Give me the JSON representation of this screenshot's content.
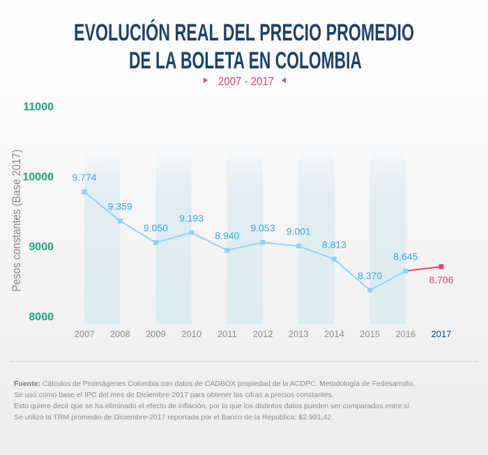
{
  "chart_data": {
    "type": "line",
    "title": "EVOLUCIÓN REAL DEL PRECIO PROMEDIO DE LA BOLETA EN COLOMBIA",
    "title_lines": [
      "EVOLUCIÓN REAL DEL PRECIO PROMEDIO",
      "DE LA BOLETA EN COLOMBIA"
    ],
    "subtitle": "2007 - 2017",
    "ylabel": "Pesos constantes (Base 2017)",
    "xlabel": "",
    "ylim": [
      8000,
      11000
    ],
    "yticks": [
      "8000",
      "9000",
      "10000",
      "11000"
    ],
    "categories": [
      "2007",
      "2008",
      "2009",
      "2010",
      "2011",
      "2012",
      "2013",
      "2014",
      "2015",
      "2016",
      "2017"
    ],
    "series": [
      {
        "values": [
          9774,
          9359,
          9050,
          9193,
          8940,
          9053,
          9001,
          8813,
          8370,
          8645,
          null
        ],
        "color": "#8dd3f3",
        "labels": [
          "9.774",
          "9.359",
          "9.050",
          "9.193",
          "8.940",
          "9.053",
          "9.001",
          "8.813",
          "8.370",
          "8.645",
          ""
        ]
      },
      {
        "values": [
          null,
          null,
          null,
          null,
          null,
          null,
          null,
          null,
          null,
          8645,
          8706
        ],
        "color": "#e8416a",
        "labels": [
          "",
          "",
          "",
          "",
          "",
          "",
          "",
          "",
          "",
          "",
          "8.706"
        ]
      }
    ],
    "grid": false,
    "highlight_bands": [
      "2007",
      "2009",
      "2011",
      "2013",
      "2015"
    ]
  },
  "footnote": {
    "source_label": "Fuente:",
    "lines": [
      " Cálculos de Proimágenes Colombia con datos de CADBOX propiedad de la ACDPC. Metodología de Fedesarrollo.",
      "Se usó como base el IPC del mes de Diciembre-2017 para obtener las cifras a precios constantes.",
      "Esto quiere decir que se ha eliminado el efecto de inflación, por lo que los distintos datos pueden ser comparados entre sí.",
      "Se utilizó la TRM promedio de Diciembre-2017 reportada por el Banco de la República: $2.991,42."
    ]
  },
  "colors": {
    "title": "#1b426d",
    "accent": "#e8416a",
    "line": "#8dd3f3",
    "label": "#2ea8e2",
    "ytick": "#16a77c",
    "band": "#dcebf2"
  }
}
